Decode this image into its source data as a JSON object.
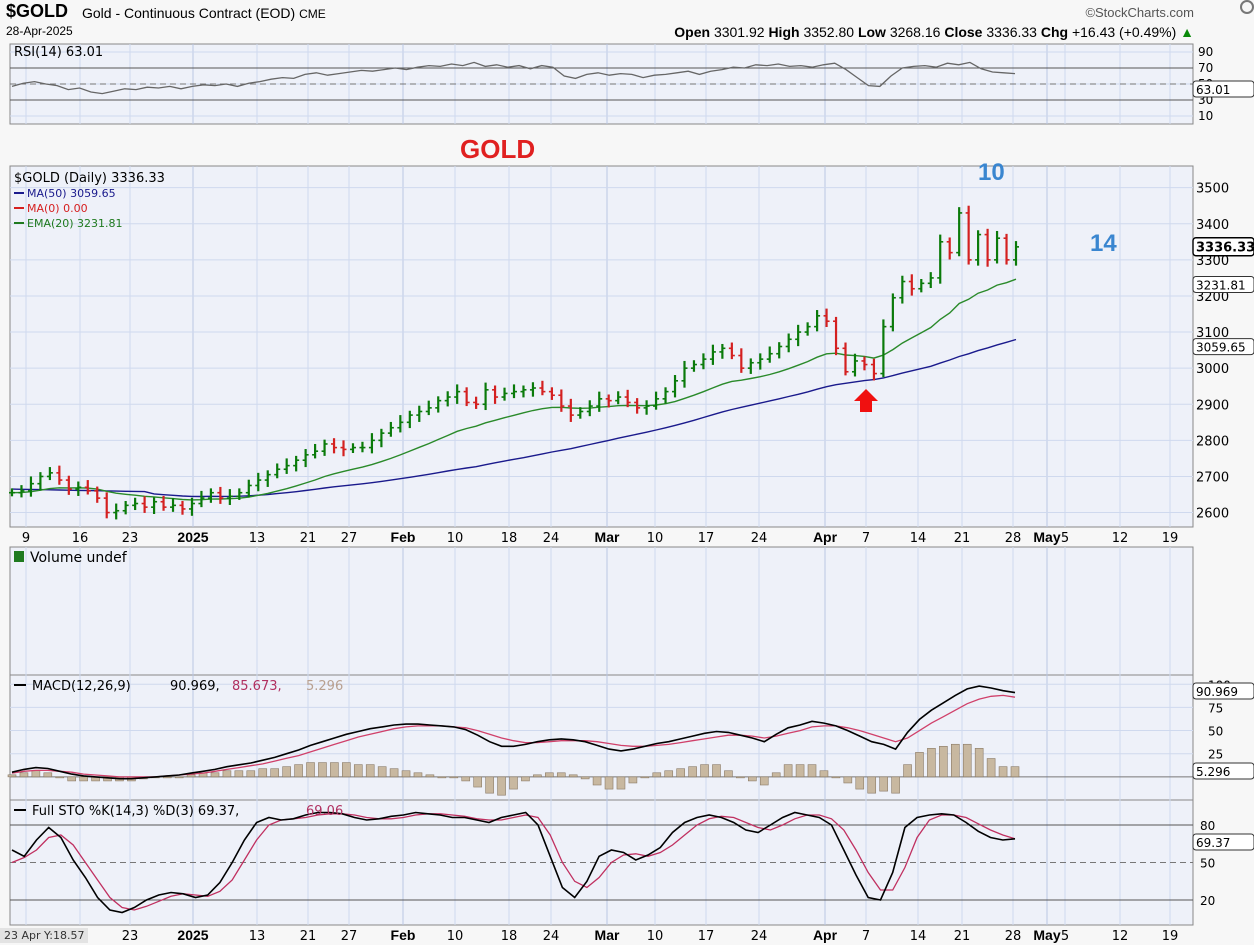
{
  "header": {
    "symbol": "$GOLD",
    "description": "Gold - Continuous Contract (EOD)",
    "exchange": "CME",
    "date": "28-Apr-2025",
    "brand": "©StockCharts.com",
    "open_label": "Open",
    "open": "3301.92",
    "high_label": "High",
    "high": "3352.80",
    "low_label": "Low",
    "low": "3268.16",
    "close_label": "Close",
    "close": "3336.33",
    "chg_label": "Chg",
    "chg": "+16.43 (+0.49%)",
    "up_arrow": "▲"
  },
  "cursor_readout": "23 Apr Y:18.57",
  "chart_data": {
    "type": "line",
    "title": "GOLD",
    "annotations": [
      "10",
      "14"
    ],
    "x_ticks": [
      {
        "label": "9",
        "bold": false
      },
      {
        "label": "16",
        "bold": false
      },
      {
        "label": "23",
        "bold": false
      },
      {
        "label": "2025",
        "bold": true
      },
      {
        "label": "13",
        "bold": false
      },
      {
        "label": "21",
        "bold": false
      },
      {
        "label": "27",
        "bold": false
      },
      {
        "label": "Feb",
        "bold": true
      },
      {
        "label": "10",
        "bold": false
      },
      {
        "label": "18",
        "bold": false
      },
      {
        "label": "24",
        "bold": false
      },
      {
        "label": "Mar",
        "bold": true
      },
      {
        "label": "10",
        "bold": false
      },
      {
        "label": "17",
        "bold": false
      },
      {
        "label": "24",
        "bold": false
      },
      {
        "label": "Apr",
        "bold": true
      },
      {
        "label": "7",
        "bold": false
      },
      {
        "label": "14",
        "bold": false
      },
      {
        "label": "21",
        "bold": false
      },
      {
        "label": "28",
        "bold": false
      },
      {
        "label": "May",
        "bold": true
      },
      {
        "label": "5",
        "bold": false
      },
      {
        "label": "12",
        "bold": false
      },
      {
        "label": "19",
        "bold": false
      }
    ],
    "rsi": {
      "label": "RSI(14) 63.01",
      "current": "63.01",
      "ticks": [
        "90",
        "70",
        "50",
        "30",
        "10"
      ],
      "overbought": 70,
      "oversold": 30,
      "values": [
        47,
        51,
        53,
        50,
        48,
        43,
        45,
        40,
        38,
        41,
        44,
        43,
        46,
        45,
        47,
        44,
        47,
        49,
        48,
        50,
        47,
        51,
        53,
        56,
        58,
        57,
        62,
        64,
        61,
        63,
        65,
        67,
        66,
        68,
        70,
        68,
        71,
        73,
        72,
        75,
        73,
        77,
        72,
        74,
        71,
        73,
        69,
        73,
        71,
        60,
        57,
        62,
        64,
        61,
        63,
        62,
        58,
        61,
        62,
        64,
        66,
        62,
        66,
        68,
        71,
        70,
        74,
        73,
        75,
        72,
        73,
        71,
        74,
        76,
        68,
        58,
        48,
        47,
        60,
        70,
        72,
        73,
        71,
        76,
        74,
        77,
        69,
        65,
        64,
        63
      ]
    },
    "price": {
      "label": "$GOLD (Daily) 3336.33",
      "legend": [
        {
          "label": "MA(50) 3059.65",
          "color": "#1a1a8c"
        },
        {
          "label": "MA(0) 0.00",
          "color": "#d62020"
        },
        {
          "label": "EMA(20) 3231.81",
          "color": "#1f7a1f"
        }
      ],
      "ylim": [
        2560,
        3560
      ],
      "y_ticks": [
        "3500",
        "3400",
        "3300",
        "3200",
        "3100",
        "3000",
        "2900",
        "2800",
        "2700",
        "2600"
      ],
      "last_close": "3336.33",
      "ema_label": "3231.81",
      "ma_label": "3059.65",
      "close": [
        2655,
        2660,
        2680,
        2700,
        2710,
        2690,
        2665,
        2670,
        2660,
        2640,
        2600,
        2605,
        2620,
        2625,
        2615,
        2630,
        2615,
        2620,
        2610,
        2625,
        2640,
        2655,
        2640,
        2645,
        2655,
        2675,
        2690,
        2705,
        2720,
        2730,
        2745,
        2760,
        2770,
        2790,
        2780,
        2775,
        2780,
        2780,
        2800,
        2820,
        2835,
        2850,
        2870,
        2880,
        2890,
        2910,
        2920,
        2935,
        2905,
        2900,
        2940,
        2920,
        2930,
        2935,
        2940,
        2945,
        2935,
        2925,
        2895,
        2870,
        2880,
        2895,
        2915,
        2910,
        2920,
        2905,
        2890,
        2895,
        2915,
        2935,
        2965,
        3000,
        3010,
        3025,
        3045,
        3055,
        3035,
        3000,
        3015,
        3025,
        3040,
        3060,
        3080,
        3100,
        3115,
        3145,
        3130,
        3055,
        2990,
        3020,
        3010,
        2985,
        3115,
        3195,
        3240,
        3220,
        3235,
        3250,
        3350,
        3320,
        3430,
        3300,
        3370,
        3300,
        3360,
        3300,
        3336
      ]
    },
    "volume": {
      "label": "Volume undef"
    },
    "macd": {
      "label_prefix": "MACD(12,26,9)",
      "macd": "90.969",
      "signal": "85.673",
      "hist": "5.296",
      "ticks": [
        "100",
        "75",
        "50",
        "25"
      ],
      "current_label": "90.969",
      "hist_label": "5.296",
      "macd_values": [
        5,
        8,
        10,
        9,
        6,
        3,
        1,
        0,
        -1,
        -2,
        -2,
        -1,
        0,
        1,
        2,
        4,
        6,
        8,
        11,
        13,
        15,
        18,
        21,
        25,
        29,
        34,
        38,
        42,
        46,
        49,
        52,
        54,
        56,
        57,
        57,
        56,
        55,
        54,
        51,
        45,
        38,
        33,
        33,
        35,
        38,
        40,
        41,
        40,
        38,
        34,
        30,
        28,
        30,
        33,
        36,
        38,
        41,
        44,
        47,
        49,
        48,
        45,
        42,
        38,
        46,
        53,
        56,
        60,
        58,
        55,
        50,
        44,
        38,
        35,
        30,
        48,
        62,
        72,
        80,
        88,
        95,
        98,
        96,
        93,
        91
      ],
      "signal_values": [
        4,
        6,
        7,
        7,
        6,
        5,
        3,
        2,
        1,
        0,
        0,
        0,
        0,
        1,
        2,
        3,
        4,
        6,
        8,
        10,
        12,
        14,
        17,
        20,
        23,
        27,
        31,
        35,
        39,
        43,
        46,
        49,
        52,
        54,
        55,
        55,
        55,
        54,
        53,
        50,
        46,
        42,
        39,
        37,
        37,
        38,
        39,
        39,
        39,
        38,
        36,
        34,
        33,
        33,
        34,
        35,
        37,
        39,
        41,
        43,
        45,
        45,
        44,
        42,
        44,
        47,
        50,
        54,
        55,
        55,
        53,
        50,
        46,
        42,
        38,
        42,
        50,
        58,
        65,
        72,
        79,
        84,
        87,
        88,
        86
      ]
    },
    "sto": {
      "label_prefix": "Full STO %K(14,3) %D(3)",
      "k": "69.37",
      "d": "69.06",
      "ticks": [
        "80",
        "50",
        "20"
      ],
      "current_label": "69.37",
      "k_values": [
        60,
        55,
        68,
        78,
        70,
        52,
        38,
        22,
        12,
        10,
        14,
        20,
        24,
        26,
        25,
        22,
        24,
        34,
        50,
        68,
        82,
        86,
        84,
        85,
        88,
        90,
        90,
        89,
        86,
        84,
        85,
        87,
        88,
        90,
        89,
        88,
        86,
        86,
        84,
        82,
        86,
        88,
        90,
        80,
        55,
        30,
        22,
        35,
        55,
        60,
        58,
        52,
        56,
        62,
        74,
        82,
        86,
        88,
        86,
        82,
        76,
        74,
        80,
        86,
        90,
        88,
        86,
        80,
        60,
        40,
        22,
        20,
        42,
        78,
        86,
        88,
        89,
        88,
        82,
        75,
        70,
        68,
        69
      ],
      "d_values": [
        50,
        54,
        60,
        70,
        72,
        64,
        50,
        36,
        22,
        14,
        12,
        15,
        19,
        23,
        25,
        24,
        23,
        27,
        36,
        52,
        68,
        80,
        84,
        85,
        86,
        88,
        89,
        89,
        88,
        86,
        85,
        85,
        86,
        88,
        89,
        89,
        88,
        87,
        85,
        84,
        84,
        86,
        88,
        86,
        72,
        50,
        35,
        30,
        38,
        50,
        56,
        57,
        55,
        58,
        64,
        72,
        80,
        85,
        87,
        86,
        82,
        78,
        76,
        80,
        85,
        88,
        88,
        85,
        76,
        60,
        42,
        28,
        28,
        46,
        70,
        84,
        88,
        88,
        86,
        81,
        76,
        72,
        69
      ]
    }
  }
}
